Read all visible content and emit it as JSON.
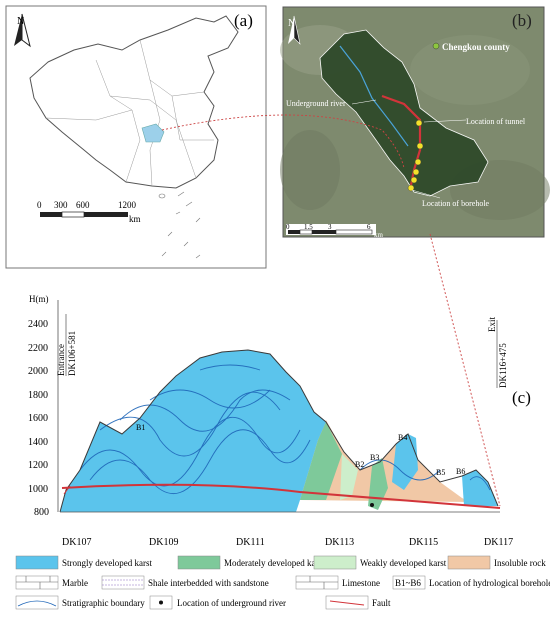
{
  "panel_a": {
    "label": "(a)",
    "north": "N",
    "scale_ticks": [
      "0",
      "300",
      "600",
      "1200"
    ],
    "scale_unit": "km"
  },
  "panel_b": {
    "label": "(b)",
    "north": "N",
    "county": "Chengkou county",
    "underground_river": "Underground river",
    "tunnel": "Location of tunnel",
    "borehole": "Location of borehole",
    "scale_ticks": [
      "0",
      "1.5",
      "3",
      "6"
    ],
    "scale_unit": "km"
  },
  "panel_c": {
    "label": "(c)",
    "y_axis_title": "H(m)",
    "y_ticks": [
      "2400",
      "2200",
      "2000",
      "1800",
      "1600",
      "1400",
      "1200",
      "1000",
      "800"
    ],
    "x_ticks": [
      "DK107",
      "DK109",
      "DK111",
      "DK113",
      "DK115",
      "DK117"
    ],
    "entrance": "Entrance",
    "entrance_chainage": "DK106+581",
    "exit": "Exit",
    "exit_chainage": "DK116+475",
    "boreholes": [
      "B1",
      "B2",
      "B3",
      "B4",
      "B5",
      "B6"
    ]
  },
  "legend": {
    "strong": "Strongly developed karst",
    "moderate": "Moderately developed karst",
    "weak": "Weakly developed karst",
    "insoluble": "Insoluble rock",
    "marble": "Marble",
    "shale": "Shale interbedded with sandstone",
    "limestone": "Limestone",
    "borehole_code": "B1~B6",
    "borehole_desc": "Location of hydrological borehole",
    "boundary": "Stratigraphic boundary",
    "river_point": "Location of underground river",
    "fault": "Fault"
  },
  "colors": {
    "strong": "#5bc4ec",
    "moderate": "#7ec99a",
    "weak": "#cdeecb",
    "insoluble": "#f1c8a6",
    "fault": "#d2343a"
  }
}
